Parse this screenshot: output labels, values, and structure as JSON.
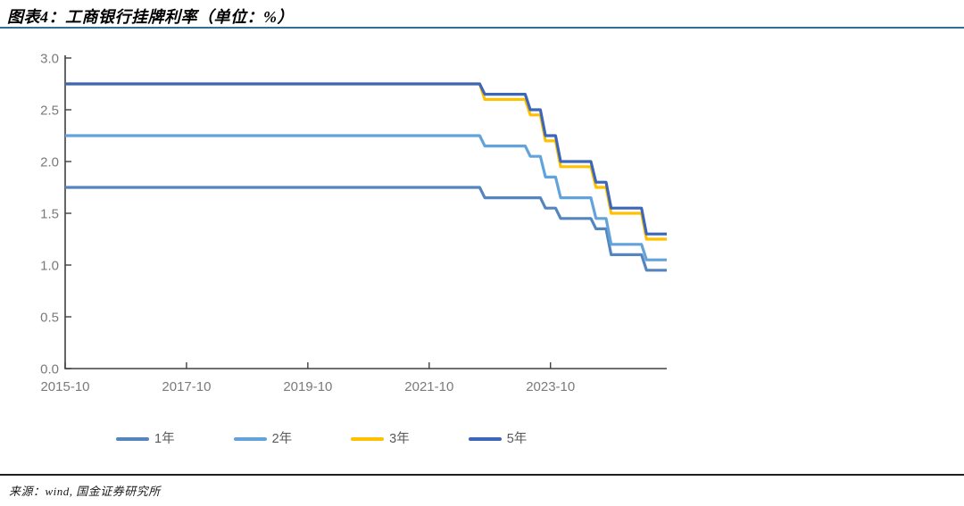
{
  "figure": {
    "title": "图表4：工商银行挂牌利率（单位：%）",
    "source": "来源：wind, 国金证券研究所"
  },
  "colors": {
    "title_rule": "#336e96",
    "bottom_rule": "#1f1f1f",
    "axis": "#404040",
    "tick_label": "#7a7a7a",
    "legend_label": "#595959"
  },
  "chart_data": {
    "type": "line",
    "title": "工商银行挂牌利率（单位：%）",
    "xlabel": "",
    "ylabel": "",
    "ylim": [
      0.0,
      3.0
    ],
    "y_ticks": [
      "0.0",
      "0.5",
      "1.0",
      "1.5",
      "2.0",
      "2.5",
      "3.0"
    ],
    "x_ticks": [
      "2015-10",
      "2017-10",
      "2019-10",
      "2021-10",
      "2023-10"
    ],
    "x_start_month": "2015-10",
    "x_end_month": "2025-09",
    "grid": false,
    "legend_position": "bottom",
    "series": [
      {
        "key": "1y",
        "name": "1年",
        "color": "#5585BE",
        "changepoints": [
          [
            "2015-10",
            1.75
          ],
          [
            "2022-09",
            1.65
          ],
          [
            "2023-09",
            1.55
          ],
          [
            "2023-12",
            1.45
          ],
          [
            "2024-07",
            1.35
          ],
          [
            "2024-10",
            1.1
          ],
          [
            "2025-05",
            0.95
          ]
        ]
      },
      {
        "key": "2y",
        "name": "2年",
        "color": "#63A3DB",
        "changepoints": [
          [
            "2015-10",
            2.25
          ],
          [
            "2022-09",
            2.15
          ],
          [
            "2023-06",
            2.05
          ],
          [
            "2023-09",
            1.85
          ],
          [
            "2023-12",
            1.65
          ],
          [
            "2024-07",
            1.45
          ],
          [
            "2024-10",
            1.2
          ],
          [
            "2025-05",
            1.05
          ]
        ]
      },
      {
        "key": "3y",
        "name": "3年",
        "color": "#FFC000",
        "changepoints": [
          [
            "2015-10",
            2.75
          ],
          [
            "2022-09",
            2.6
          ],
          [
            "2023-06",
            2.45
          ],
          [
            "2023-09",
            2.2
          ],
          [
            "2023-12",
            1.95
          ],
          [
            "2024-07",
            1.75
          ],
          [
            "2024-10",
            1.5
          ],
          [
            "2025-05",
            1.25
          ]
        ]
      },
      {
        "key": "5y",
        "name": "5年",
        "color": "#3C66B8",
        "changepoints": [
          [
            "2015-10",
            2.75
          ],
          [
            "2022-09",
            2.65
          ],
          [
            "2023-06",
            2.5
          ],
          [
            "2023-09",
            2.25
          ],
          [
            "2023-12",
            2.0
          ],
          [
            "2024-07",
            1.8
          ],
          [
            "2024-10",
            1.55
          ],
          [
            "2025-05",
            1.3
          ]
        ]
      }
    ]
  }
}
